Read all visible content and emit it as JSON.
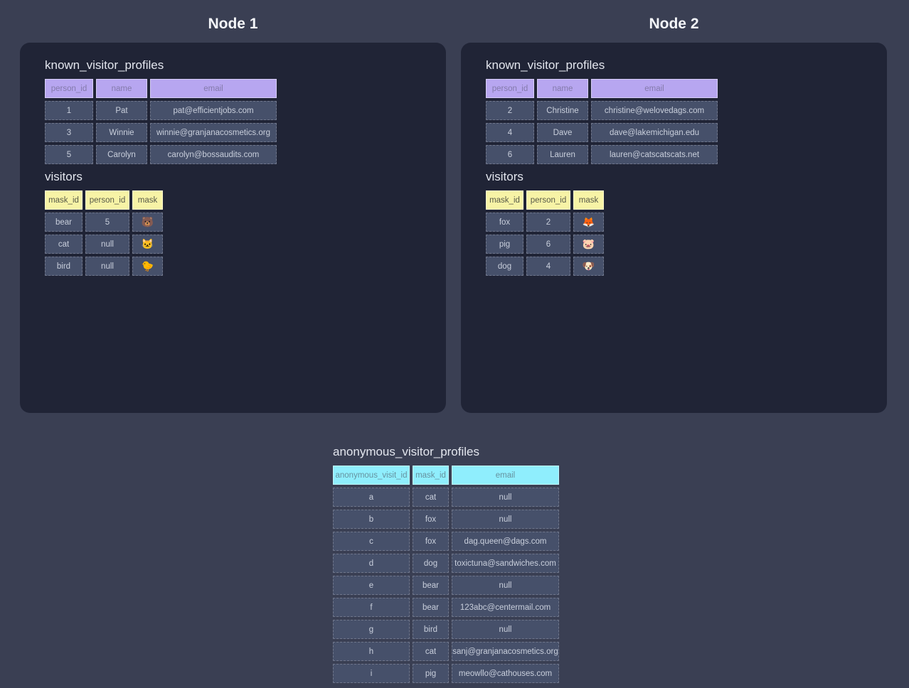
{
  "colors": {
    "page_bg": "#3a3f53",
    "panel_bg": "#202436",
    "cell_bg": "#46506a",
    "cell_text": "#c9cfdc",
    "purple_header_bg": "#b7a6f0",
    "purple_header_text": "#847aab",
    "yellow_header_bg": "#f7f3a6",
    "yellow_header_text": "#585a49",
    "cyan_header_bg": "#8feefd",
    "cyan_header_text": "#66929f",
    "title_text": "#e3e6ee",
    "node_title_text": "#f4f6fa"
  },
  "nodes": [
    {
      "title": "Node 1",
      "known": {
        "title": "known_visitor_profiles",
        "columns": [
          "person_id",
          "name",
          "email"
        ],
        "rows": [
          [
            "1",
            "Pat",
            "pat@efficientjobs.com"
          ],
          [
            "3",
            "Winnie",
            "winnie@granjanacosmetics.org"
          ],
          [
            "5",
            "Carolyn",
            "carolyn@bossaudits.com"
          ]
        ]
      },
      "visitors": {
        "title": "visitors",
        "columns": [
          "mask_id",
          "person_id",
          "mask"
        ],
        "rows": [
          [
            "bear",
            "5",
            "🐻"
          ],
          [
            "cat",
            "null",
            "🐱"
          ],
          [
            "bird",
            "null",
            "🐤"
          ]
        ]
      }
    },
    {
      "title": "Node 2",
      "known": {
        "title": "known_visitor_profiles",
        "columns": [
          "person_id",
          "name",
          "email"
        ],
        "rows": [
          [
            "2",
            "Christine",
            "christine@welovedags.com"
          ],
          [
            "4",
            "Dave",
            "dave@lakemichigan.edu"
          ],
          [
            "6",
            "Lauren",
            "lauren@catscatscats.net"
          ]
        ]
      },
      "visitors": {
        "title": "visitors",
        "columns": [
          "mask_id",
          "person_id",
          "mask"
        ],
        "rows": [
          [
            "fox",
            "2",
            "🦊"
          ],
          [
            "pig",
            "6",
            "🐷"
          ],
          [
            "dog",
            "4",
            "🐶"
          ]
        ]
      }
    }
  ],
  "anonymous": {
    "title": "anonymous_visitor_profiles",
    "columns": [
      "anonymous_visit_id",
      "mask_id",
      "email"
    ],
    "rows": [
      [
        "a",
        "cat",
        "null"
      ],
      [
        "b",
        "fox",
        "null"
      ],
      [
        "c",
        "fox",
        "dag.queen@dags.com"
      ],
      [
        "d",
        "dog",
        "toxictuna@sandwiches.com"
      ],
      [
        "e",
        "bear",
        "null"
      ],
      [
        "f",
        "bear",
        "123abc@centermail.com"
      ],
      [
        "g",
        "bird",
        "null"
      ],
      [
        "h",
        "cat",
        "sanj@granjanacosmetics.org"
      ],
      [
        "i",
        "pig",
        "meowllo@cathouses.com"
      ]
    ]
  }
}
